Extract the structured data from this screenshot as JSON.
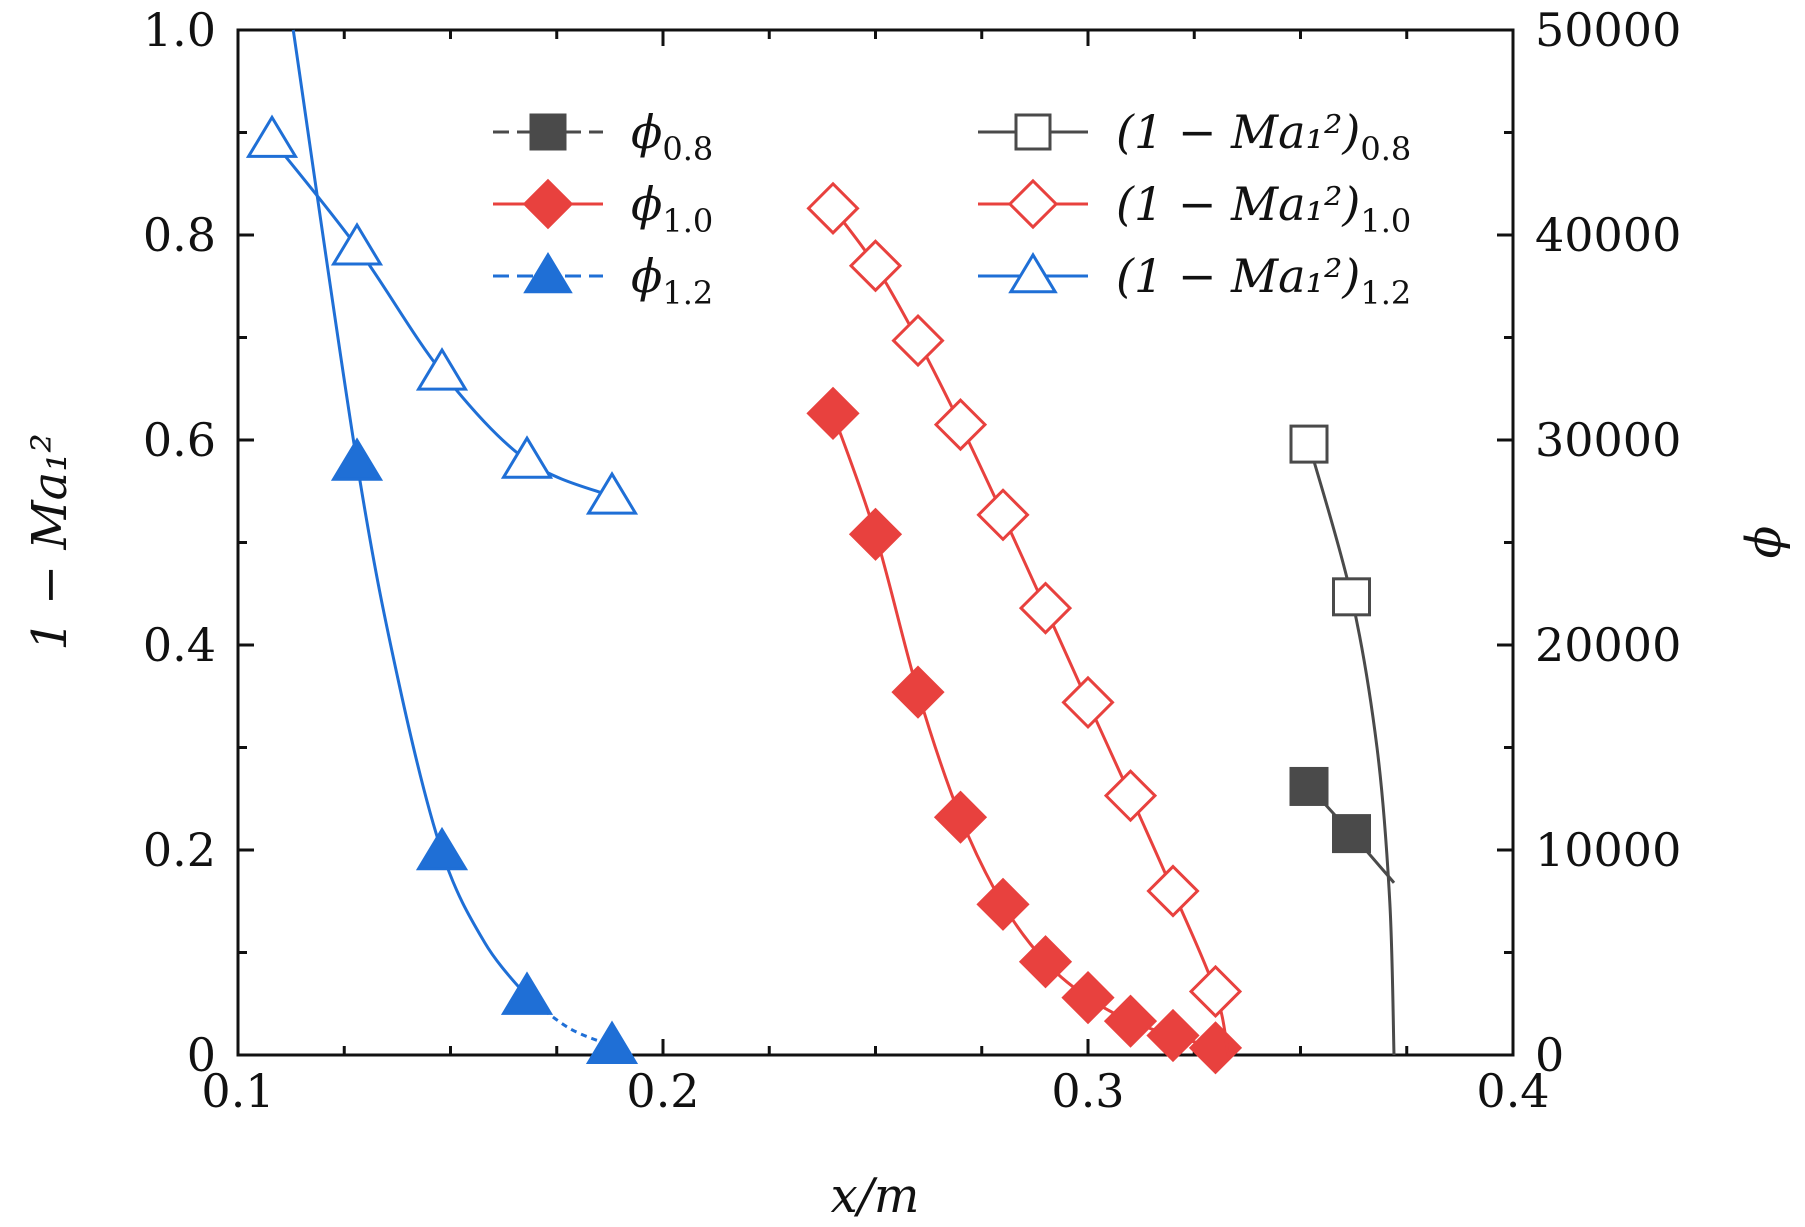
{
  "chart_data": {
    "type": "line",
    "title": "",
    "xlabel": "x/m",
    "ylabel_left": "1 − Ma₁²",
    "ylabel_right": "ϕ",
    "xlim": [
      0.1,
      0.4
    ],
    "ylim_left": [
      0,
      1.0
    ],
    "ylim_right": [
      0,
      50000
    ],
    "xticks": [
      "0.1",
      "0.2",
      "0.3",
      "0.4"
    ],
    "yticks_left": [
      "0",
      "0.2",
      "0.4",
      "0.6",
      "0.8",
      "1.0"
    ],
    "yticks_right": [
      "0",
      "10000",
      "20000",
      "30000",
      "40000",
      "50000"
    ],
    "grid": false,
    "legend_position": "top",
    "series": [
      {
        "name": "ϕ0.8",
        "label_main": "ϕ",
        "label_sub": "0.8",
        "axis": "right",
        "marker": "square",
        "filled": true,
        "color": "#4a4a4a",
        "x": [
          0.352,
          0.362
        ],
        "y": [
          13100,
          10800
        ],
        "curve": [
          [
            0.352,
            13100
          ],
          [
            0.362,
            10800
          ],
          [
            0.372,
            8400
          ]
        ]
      },
      {
        "name": "ϕ1.0",
        "label_main": "ϕ",
        "label_sub": "1.0",
        "axis": "right",
        "marker": "diamond",
        "filled": true,
        "color": "#e8413e",
        "x": [
          0.24,
          0.25,
          0.26,
          0.27,
          0.28,
          0.29,
          0.3,
          0.31,
          0.32,
          0.33
        ],
        "y": [
          31300,
          25400,
          17700,
          11600,
          7350,
          4550,
          2800,
          1650,
          950,
          350
        ],
        "curve": [
          [
            0.24,
            31300
          ],
          [
            0.25,
            25400
          ],
          [
            0.26,
            17700
          ],
          [
            0.27,
            11600
          ],
          [
            0.28,
            7350
          ],
          [
            0.29,
            4550
          ],
          [
            0.3,
            2800
          ],
          [
            0.31,
            1650
          ],
          [
            0.32,
            950
          ],
          [
            0.33,
            350
          ]
        ]
      },
      {
        "name": "ϕ1.2",
        "label_main": "ϕ",
        "label_sub": "1.2",
        "axis": "right",
        "marker": "triangle",
        "filled": true,
        "color": "#1f6fd6",
        "x": [
          0.128,
          0.148,
          0.168,
          0.188
        ],
        "y": [
          28900,
          9900,
          2850,
          450
        ],
        "curve": [
          [
            0.113,
            50000
          ],
          [
            0.128,
            28900
          ],
          [
            0.138,
            18000
          ],
          [
            0.148,
            9900
          ],
          [
            0.158,
            5500
          ],
          [
            0.168,
            2850
          ]
        ],
        "curve_dashed": [
          [
            0.168,
            2850
          ],
          [
            0.178,
            1300
          ],
          [
            0.188,
            450
          ]
        ]
      },
      {
        "name": "(1−Ma₁²)0.8",
        "label_main": "(1 − Ma₁²)",
        "label_sub": "0.8",
        "axis": "left",
        "marker": "square",
        "filled": false,
        "color": "#4a4a4a",
        "x": [
          0.352,
          0.362
        ],
        "y": [
          0.596,
          0.447
        ],
        "curve": [
          [
            0.352,
            0.596
          ],
          [
            0.362,
            0.447
          ],
          [
            0.368,
            0.3
          ],
          [
            0.371,
            0.15
          ],
          [
            0.372,
            0.0
          ]
        ]
      },
      {
        "name": "(1−Ma₁²)1.0",
        "label_main": "(1 − Ma₁²)",
        "label_sub": "1.0",
        "axis": "left",
        "marker": "diamond",
        "filled": false,
        "color": "#e8413e",
        "x": [
          0.24,
          0.25,
          0.26,
          0.27,
          0.28,
          0.29,
          0.3,
          0.31,
          0.32,
          0.33
        ],
        "y": [
          0.826,
          0.77,
          0.697,
          0.615,
          0.527,
          0.436,
          0.344,
          0.253,
          0.16,
          0.062
        ],
        "curve": [
          [
            0.24,
            0.826
          ],
          [
            0.25,
            0.77
          ],
          [
            0.26,
            0.697
          ],
          [
            0.27,
            0.615
          ],
          [
            0.28,
            0.527
          ],
          [
            0.29,
            0.436
          ],
          [
            0.3,
            0.344
          ],
          [
            0.31,
            0.253
          ],
          [
            0.32,
            0.16
          ],
          [
            0.33,
            0.062
          ],
          [
            0.333,
            0.0
          ]
        ]
      },
      {
        "name": "(1−Ma₁²)1.2",
        "label_main": "(1 − Ma₁²)",
        "label_sub": "1.2",
        "axis": "left",
        "marker": "triangle",
        "filled": false,
        "color": "#1f6fd6",
        "x": [
          0.108,
          0.128,
          0.148,
          0.168,
          0.188
        ],
        "y": [
          0.893,
          0.788,
          0.666,
          0.58,
          0.545
        ],
        "curve": [
          [
            0.108,
            0.893
          ],
          [
            0.128,
            0.788
          ],
          [
            0.148,
            0.666
          ],
          [
            0.168,
            0.58
          ],
          [
            0.188,
            0.545
          ]
        ]
      }
    ]
  }
}
